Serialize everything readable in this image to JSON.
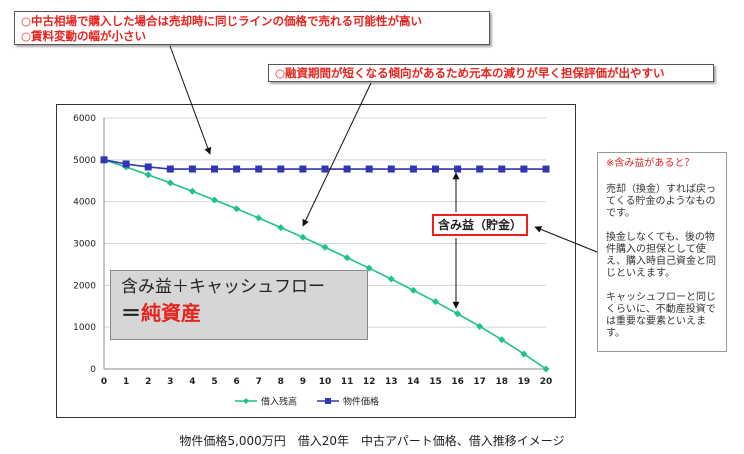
{
  "callouts": {
    "top_line1": "○中古相場で購入した場合は売却時に同じラインの価格で売れる可能性が高い",
    "top_line2": "○賃料変動の幅が小さい",
    "mid": "○融資期間が短くなる傾向があるため元本の減りが早く担保評価が出やすい"
  },
  "net_assets": {
    "line1": "含み益＋キャッシュフロー",
    "eq": "＝",
    "bold": "純資産"
  },
  "gain_label": "含み益（貯金）",
  "side_note": {
    "title": "※含み益があると？",
    "para1": "売却（換金）すれば戻ってくる貯金のようなものです。",
    "para2": "換金しなくても、後の物件購入の担保として使え、購入時自己資金と同じといえます。",
    "para3": "キャッシュフローと同じくらいに、不動産投資では重要な要素といえます。"
  },
  "caption": "物件価格5,000万円　借入20年　中古アパート価格、借入推移イメージ",
  "chart_data": {
    "type": "line",
    "title": "",
    "xlabel": "",
    "ylabel": "",
    "x": [
      0,
      1,
      2,
      3,
      4,
      5,
      6,
      7,
      8,
      9,
      10,
      11,
      12,
      13,
      14,
      15,
      16,
      17,
      18,
      19,
      20
    ],
    "ylim": [
      0,
      6000
    ],
    "yticks": [
      0,
      1000,
      2000,
      3000,
      4000,
      5000,
      6000
    ],
    "grid": true,
    "legend_position": "bottom",
    "series": [
      {
        "name": "借入残高",
        "color": "#1fc28a",
        "marker": "diamond",
        "values": [
          5000,
          4830,
          4640,
          4450,
          4250,
          4040,
          3830,
          3610,
          3380,
          3150,
          2910,
          2660,
          2410,
          2150,
          1880,
          1610,
          1320,
          1020,
          700,
          360,
          0
        ]
      },
      {
        "name": "物件価格",
        "color": "#2f36b0",
        "marker": "square",
        "values": [
          5000,
          4900,
          4830,
          4780,
          4780,
          4780,
          4780,
          4780,
          4780,
          4780,
          4780,
          4780,
          4780,
          4780,
          4780,
          4780,
          4780,
          4780,
          4780,
          4780,
          4780
        ]
      }
    ]
  }
}
